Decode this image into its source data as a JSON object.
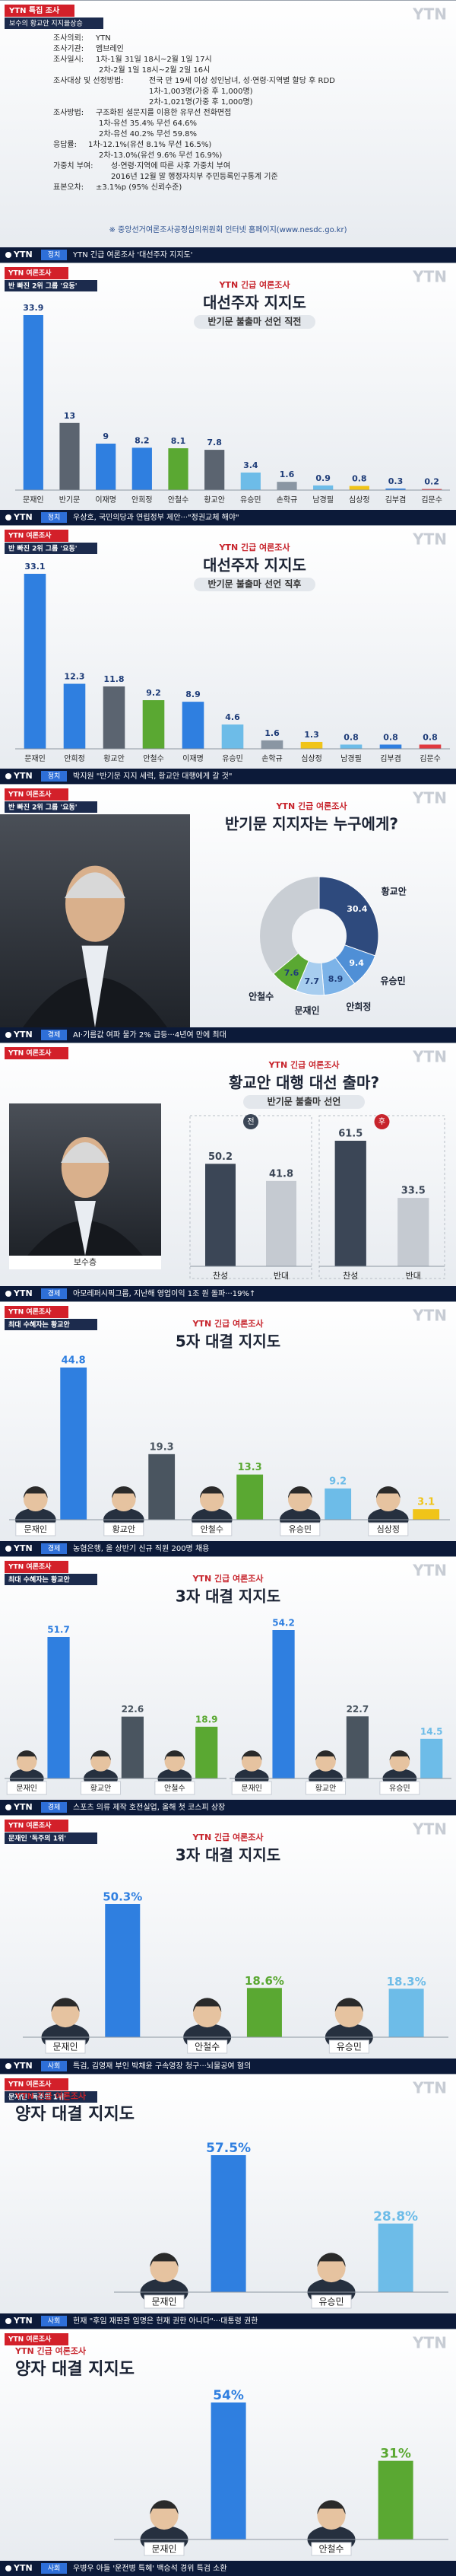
{
  "logo": "YTN",
  "survey_info": {
    "tag": [
      "YTN 특집 조사",
      "보수의 황교안 지지율상승"
    ],
    "items": [
      {
        "label": "조사의뢰:",
        "lines": [
          "YTN"
        ]
      },
      {
        "label": "조사기관:",
        "lines": [
          "엠브레인"
        ]
      },
      {
        "label": "조사일시:",
        "lines": [
          "1차-1월 31일 18시~2월 1일 17시",
          "2차-2월 1일 18시~2월 2일 16시"
        ]
      },
      {
        "label": "조사대상 및 선정방법:",
        "lines": [
          "전국 만 19세 이상 성인남녀, 성·연령·지역별 할당 후 RDD",
          "1차-1,003명(가중 후 1,000명)",
          "2차-1,021명(가중 후 1,000명)"
        ]
      },
      {
        "label": "조사방법:",
        "lines": [
          "구조화된 설문지를 이용한 유무선 전화면접",
          "1차-유선 35.4% 무선 64.6%",
          "2차-유선 40.2% 무선 59.8%"
        ]
      },
      {
        "label": "응답률:",
        "lines": [
          "1차-12.1%(유선 8.1% 무선 16.5%)",
          "2차-13.0%(유선 9.6% 무선 16.9%)"
        ]
      },
      {
        "label": "가중치 부여:",
        "lines": [
          "성·연령·지역에 따른 사후 가중치 부여",
          "2016년 12월 말 행정자치부 주민등록인구통계 기준"
        ]
      },
      {
        "label": "표본오차:",
        "lines": [
          "±3.1%p (95% 신뢰수준)"
        ]
      }
    ],
    "note": "※ 중앙선거여론조사공정심의위원회 인터넷 홈페이지(www.nesdc.go.kr)"
  },
  "tickers": [
    {
      "section": "정치",
      "text": "YTN 긴급 여론조사 '대선주자 지지도'"
    },
    {
      "section": "정치",
      "text": "우상호, 국민의당과 연립정부 제안···\"정권교체 해야\""
    },
    {
      "section": "정치",
      "text": "박지원 \"반기문 지지 세력, 황교안 대행에게 갈 것\""
    },
    {
      "section": "경제",
      "text": "AI·기름값 여파 물가 2% 급등···4년여 만에 최대"
    },
    {
      "section": "경제",
      "text": "아모레퍼시픽그룹, 지난해 영업이익 1조 원 돌파···19%↑"
    },
    {
      "section": "경제",
      "text": "농협은행, 올 상반기 신규 직원 200명 채용"
    },
    {
      "section": "경제",
      "text": "스포츠 의류 제작 호전실업, 올해 첫 코스피 상장"
    },
    {
      "section": "사회",
      "text": "특검, 김영재 부인 박채윤 구속영장 청구···뇌물공여 혐의"
    },
    {
      "section": "사회",
      "text": "헌재 \"후임 재판관 임명은 헌재 권한 아니다\"···대통령 권한"
    },
    {
      "section": "사회",
      "text": "우병우 아들 '운전병 특혜' 백승석 경위 특검 소환"
    }
  ],
  "chart_data": [
    {
      "type": "bar",
      "tag": [
        "YTN 여론조사",
        "반 빠진 2위 그룹 '요동'"
      ],
      "brand": "YTN 긴급 여론조사",
      "title": "대선주자 지지도",
      "subtitle": "반기문 불출마 선언 직전",
      "categories": [
        "문재인",
        "반기문",
        "이재명",
        "안희정",
        "안철수",
        "황교안",
        "유승민",
        "손학규",
        "남경필",
        "심상정",
        "김부겸",
        "김문수"
      ],
      "values": [
        33.9,
        13,
        9,
        8.2,
        8.1,
        7.8,
        3.4,
        1.6,
        0.9,
        0.8,
        0.3,
        0.2
      ],
      "colors": [
        "#2f7fe0",
        "#5b6470",
        "#2f7fe0",
        "#2f7fe0",
        "#5aa832",
        "#5b6470",
        "#6dbce8",
        "#8a96a3",
        "#6dbce8",
        "#f0c419",
        "#2f7fe0",
        "#e0393e"
      ]
    },
    {
      "type": "bar",
      "tag": [
        "YTN 여론조사",
        "반 빠진 2위 그룹 '요동'"
      ],
      "brand": "YTN 긴급 여론조사",
      "title": "대선주자 지지도",
      "subtitle": "반기문 불출마 선언 직후",
      "categories": [
        "문재인",
        "안희정",
        "황교안",
        "안철수",
        "이재명",
        "유승민",
        "손학규",
        "심상정",
        "남경필",
        "김부겸",
        "김문수"
      ],
      "values": [
        33.1,
        12.3,
        11.8,
        9.2,
        8.9,
        4.6,
        1.6,
        1.3,
        0.8,
        0.8,
        0.8
      ],
      "colors": [
        "#2f7fe0",
        "#2f7fe0",
        "#5b6470",
        "#5aa832",
        "#2f7fe0",
        "#6dbce8",
        "#8a96a3",
        "#f0c419",
        "#6dbce8",
        "#2f7fe0",
        "#e0393e"
      ]
    },
    {
      "type": "pie",
      "tag": [
        "YTN 여론조사",
        "반 빠진 2위 그룹 '요동'"
      ],
      "brand": "YTN 긴급 여론조사",
      "title": "반기문 지지자는 누구에게?",
      "categories": [
        "황교안",
        "유승민",
        "안희정",
        "문재인",
        "안철수"
      ],
      "values": [
        30.4,
        9.4,
        8.9,
        7.7,
        7.6
      ],
      "colors": [
        "#2e4a7d",
        "#4f8fd6",
        "#7cb3e8",
        "#a7cdef",
        "#5aa832"
      ]
    },
    {
      "type": "bar",
      "tag": [
        "YTN 여론조사"
      ],
      "brand": "YTN 긴급 여론조사",
      "title": "황교안 대행 대선 출마?",
      "subtitle": "반기문 불출마 선언",
      "photo_label": "보수층",
      "groups": [
        {
          "name": "전",
          "categories": [
            "찬성",
            "반대"
          ],
          "values": [
            50.2,
            41.8
          ]
        },
        {
          "name": "후",
          "categories": [
            "찬성",
            "반대"
          ],
          "values": [
            61.5,
            33.5
          ]
        }
      ],
      "colors": [
        "#3b4656",
        "#c5cad1"
      ]
    },
    {
      "type": "bar",
      "portraits": true,
      "tag": [
        "YTN 여론조사",
        "최대 수혜자는 황교안"
      ],
      "brand": "YTN 긴급 여론조사",
      "title": "5자 대결 지지도",
      "categories": [
        "문재인",
        "황교안",
        "안철수",
        "유승민",
        "심상정"
      ],
      "values": [
        44.8,
        19.3,
        13.3,
        9.2,
        3.1
      ],
      "colors": [
        "#2f7fe0",
        "#4a5560",
        "#5aa832",
        "#6dbce8",
        "#f0c419"
      ]
    },
    {
      "type": "bar",
      "portraits": true,
      "tag": [
        "YTN 여론조사",
        "최대 수혜자는 황교안"
      ],
      "brand": "YTN 긴급 여론조사",
      "title": "3자 대결 지지도",
      "groups": [
        {
          "categories": [
            "문재인",
            "황교안",
            "안철수"
          ],
          "values": [
            51.7,
            22.6,
            18.9
          ],
          "colors": [
            "#2f7fe0",
            "#4a5560",
            "#5aa832"
          ]
        },
        {
          "categories": [
            "문재인",
            "황교안",
            "유승민"
          ],
          "values": [
            54.2,
            22.7,
            14.5
          ],
          "colors": [
            "#2f7fe0",
            "#4a5560",
            "#6dbce8"
          ]
        }
      ]
    },
    {
      "type": "bar",
      "portraits": true,
      "tag": [
        "YTN 여론조사",
        "문재인 '독주의 1위'"
      ],
      "brand": "YTN 긴급 여론조사",
      "title": "3자 대결 지지도",
      "categories": [
        "문재인",
        "안철수",
        "유승민"
      ],
      "values": [
        50.3,
        18.6,
        18.3
      ],
      "value_labels": [
        "50.3%",
        "18.6%",
        "18.3%"
      ],
      "colors": [
        "#2f7fe0",
        "#5aa832",
        "#6dbce8"
      ]
    },
    {
      "type": "bar",
      "portraits": true,
      "tag": [
        "YTN 여론조사",
        "문재인 '독주의 1위'"
      ],
      "brand": "YTN 긴급 여론조사",
      "title": "양자 대결 지지도",
      "categories": [
        "문재인",
        "유승민"
      ],
      "values": [
        57.5,
        28.8
      ],
      "value_labels": [
        "57.5%",
        "28.8%"
      ],
      "colors": [
        "#2f7fe0",
        "#6dbce8"
      ]
    },
    {
      "type": "bar",
      "portraits": true,
      "tag": [
        "YTN 여론조사"
      ],
      "brand": "YTN 긴급 여론조사",
      "title": "양자 대결 지지도",
      "categories": [
        "문재인",
        "안철수"
      ],
      "values": [
        54,
        31
      ],
      "value_labels": [
        "54%",
        "31%"
      ],
      "colors": [
        "#2f7fe0",
        "#5aa832"
      ]
    }
  ]
}
